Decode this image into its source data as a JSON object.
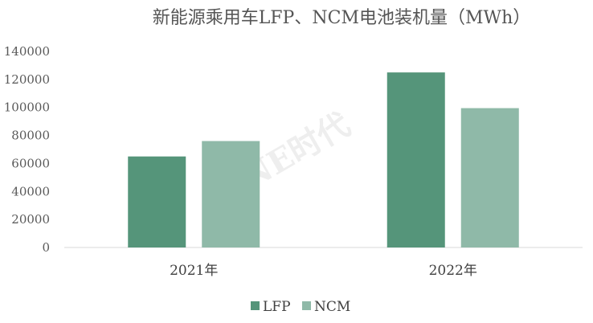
{
  "chart_data": {
    "type": "bar",
    "title": "新能源乘用车LFP、NCM电池装机量（MWh）",
    "watermark": "NE时代",
    "categories": [
      "2021年",
      "2022年"
    ],
    "series": [
      {
        "name": "LFP",
        "values": [
          65000,
          125000
        ],
        "color": "#55957a"
      },
      {
        "name": "NCM",
        "values": [
          76000,
          99500
        ],
        "color": "#8fb9a8"
      }
    ],
    "ylim": [
      0,
      140000
    ],
    "yticks": [
      "0",
      "20000",
      "40000",
      "60000",
      "80000",
      "100000",
      "120000",
      "140000"
    ],
    "grid": false,
    "legend_position": "bottom"
  }
}
